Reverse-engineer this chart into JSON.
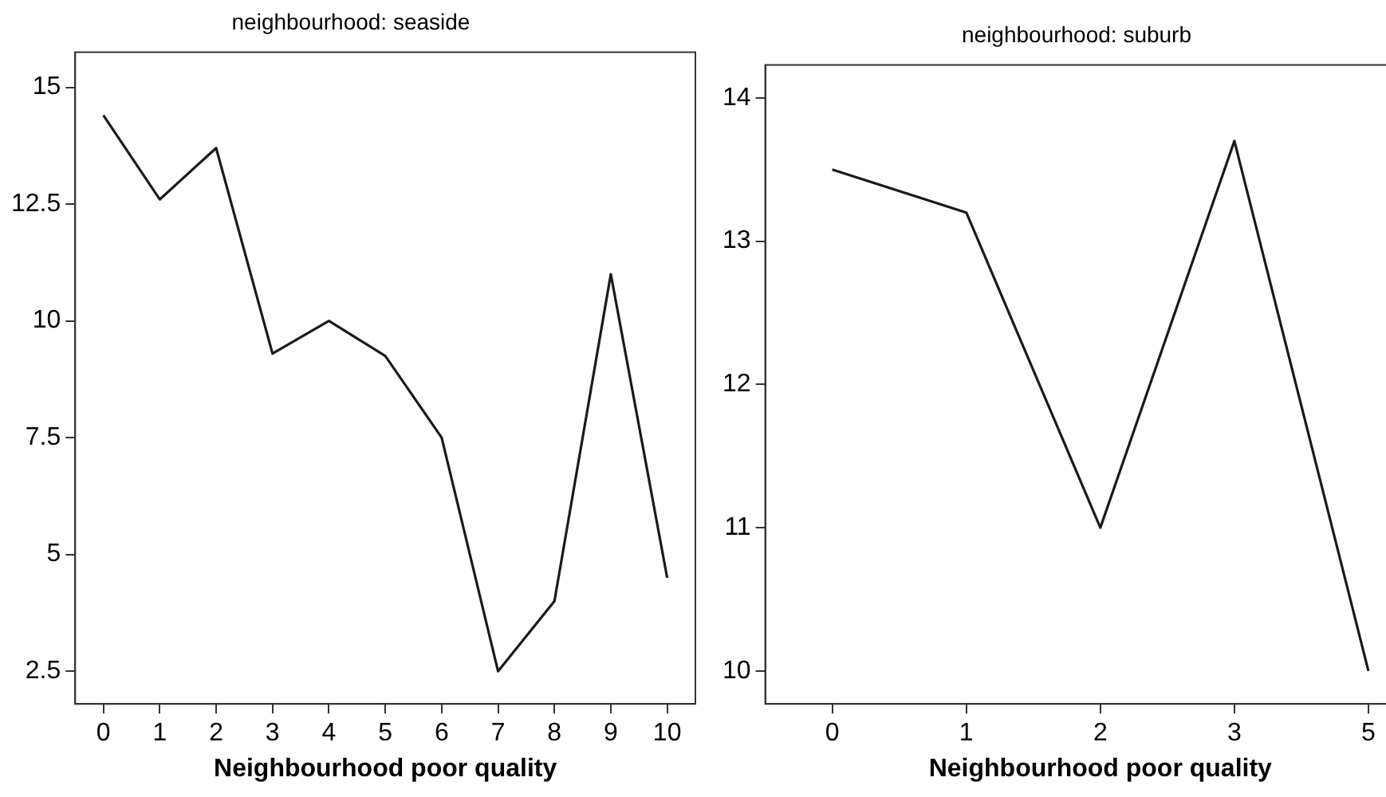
{
  "chart_data": [
    {
      "type": "line",
      "title": "neighbourhood: seaside",
      "xlabel": "Neighbourhood poor quality",
      "categories": [
        "0",
        "1",
        "2",
        "3",
        "4",
        "5",
        "6",
        "7",
        "8",
        "9",
        "10"
      ],
      "values": [
        14.4,
        12.6,
        13.7,
        9.3,
        10.0,
        9.25,
        7.5,
        2.5,
        4.0,
        11.0,
        4.5
      ],
      "color": "#1a1a1a",
      "marker": "none",
      "ylim": [
        1.8,
        15.75
      ],
      "yticks": [
        {
          "value": 2.5,
          "label": "2.5"
        },
        5,
        {
          "value": 7.5,
          "label": "7.5"
        },
        10,
        {
          "value": 12.5,
          "label": "12.5"
        },
        15
      ]
    },
    {
      "type": "line",
      "title": "neighbourhood: suburb",
      "xlabel": "Neighbourhood poor quality",
      "categories": [
        "0",
        "1",
        "2",
        "3",
        "5"
      ],
      "values": [
        13.5,
        13.2,
        11.0,
        13.7,
        10.0
      ],
      "color": "#1a1a1a",
      "marker": "none",
      "ylim": [
        9.77,
        14.23
      ],
      "yticks": [
        10,
        11,
        12,
        13,
        14
      ]
    }
  ]
}
